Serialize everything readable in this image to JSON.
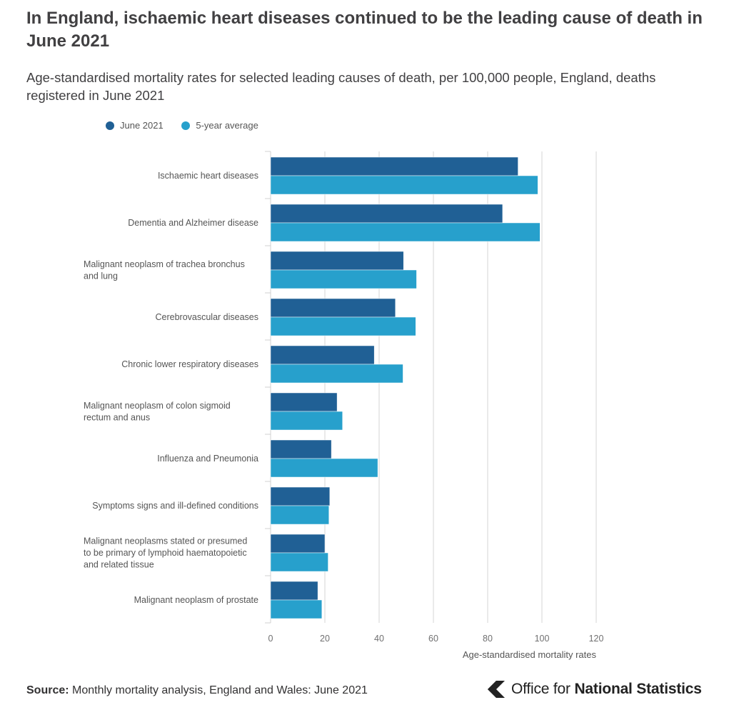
{
  "title": "In England, ischaemic heart diseases continued to be the leading cause of death in June 2021",
  "subtitle": "Age-standardised mortality rates for selected leading causes of death, per 100,000 people, England, deaths registered in June 2021",
  "source": {
    "label": "Source:",
    "text": "Monthly mortality analysis, England and Wales: June 2021"
  },
  "logo": {
    "prefix": "Office for ",
    "bold": "National Statistics"
  },
  "colors": {
    "june2021": "#206095",
    "avg": "#27a0cc",
    "grid": "#e4e4e4",
    "axis_text": "#707071"
  },
  "chart_data": {
    "type": "bar",
    "orientation": "horizontal",
    "title": "In England, ischaemic heart diseases continued to be the leading cause of death in June 2021",
    "xlabel": "Age-standardised mortality rates",
    "ylabel": "",
    "xlim": [
      0,
      120
    ],
    "xticks": [
      0,
      20,
      40,
      60,
      80,
      100,
      120
    ],
    "legend_position": "top-left",
    "categories": [
      [
        "Ischaemic heart diseases"
      ],
      [
        "Dementia and Alzheimer disease"
      ],
      [
        "Malignant neoplasm of trachea bronchus",
        "and lung"
      ],
      [
        "Cerebrovascular diseases"
      ],
      [
        "Chronic lower respiratory diseases"
      ],
      [
        "Malignant neoplasm of colon sigmoid",
        "rectum and anus"
      ],
      [
        "Influenza and Pneumonia"
      ],
      [
        "Symptoms signs and ill-defined conditions"
      ],
      [
        "Malignant neoplasms stated or presumed",
        "to be primary of lymphoid haematopoietic",
        "and related tissue"
      ],
      [
        "Malignant neoplasm of prostate"
      ]
    ],
    "series": [
      {
        "name": "June 2021",
        "color": "#206095",
        "values": [
          91.2,
          85.5,
          49.0,
          46.0,
          38.2,
          24.5,
          22.4,
          21.8,
          20.0,
          17.4
        ]
      },
      {
        "name": "5-year average",
        "color": "#27a0cc",
        "values": [
          98.5,
          99.3,
          53.8,
          53.5,
          48.8,
          26.5,
          39.5,
          21.5,
          21.2,
          18.9
        ]
      }
    ]
  }
}
